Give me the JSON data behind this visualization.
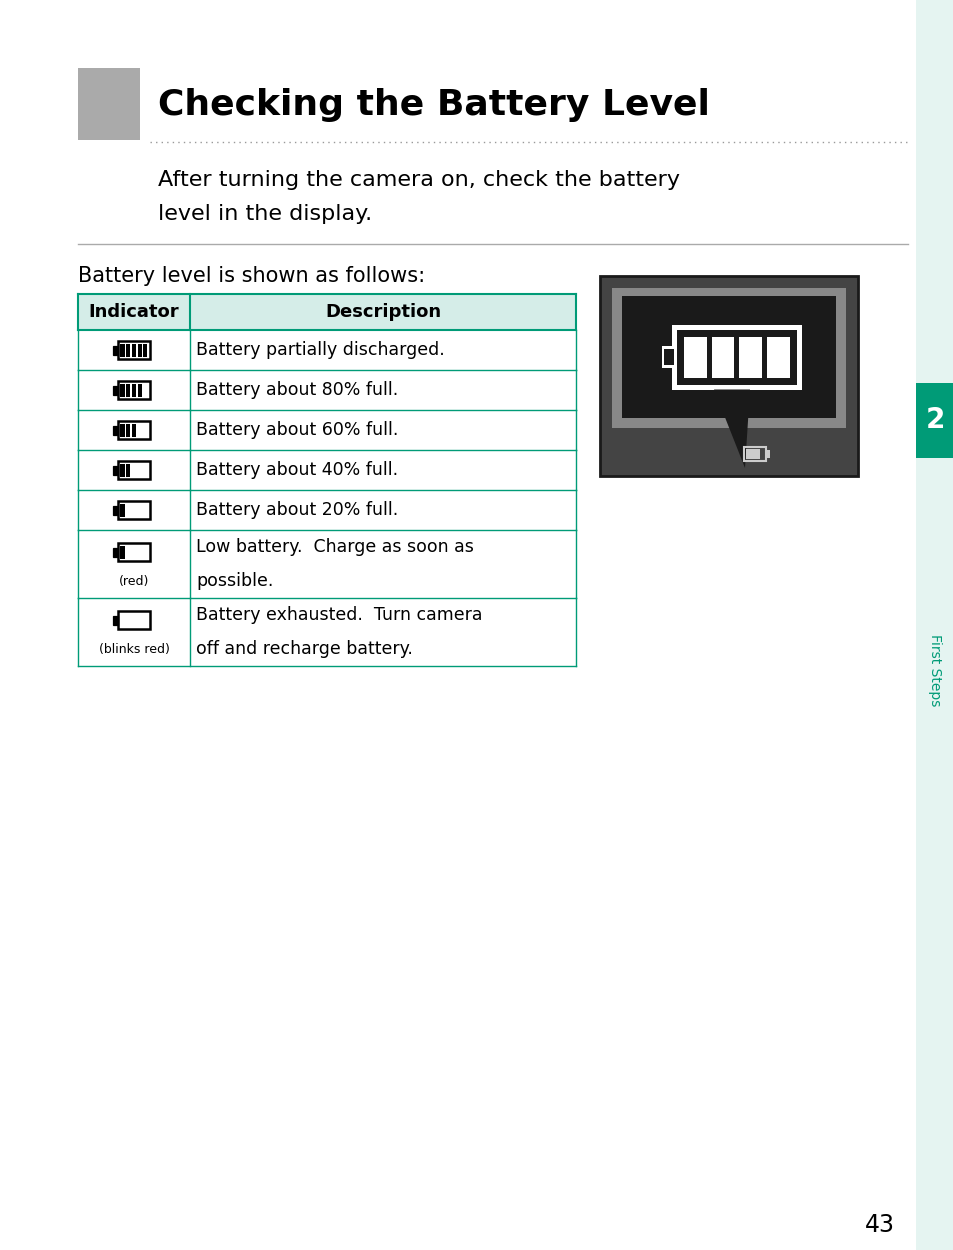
{
  "title": "Checking the Battery Level",
  "subtitle_line1": "After turning the camera on, check the battery",
  "subtitle_line2": "level in the display.",
  "section_label": "Battery level is shown as follows:",
  "descriptions": [
    "Battery partially discharged.",
    "Battery about 80% full.",
    "Battery about 60% full.",
    "Battery about 40% full.",
    "Battery about 20% full.",
    "Low battery.  Charge as soon as\npossible.",
    "Battery exhausted.  Turn camera\noff and recharge battery."
  ],
  "indicators_sub": [
    "",
    "",
    "",
    "",
    "",
    "(red)",
    "(blinks red)"
  ],
  "bar_counts": [
    5,
    4,
    3,
    2,
    1,
    1,
    0
  ],
  "bg_color": "#ffffff",
  "header_bg": "#d5ede8",
  "teal_color": "#009B77",
  "gray_square_color": "#aaaaaa",
  "page_number": "43",
  "chapter_number": "2",
  "chapter_label": "First Steps",
  "light_teal_bg": "#e5f4f1"
}
